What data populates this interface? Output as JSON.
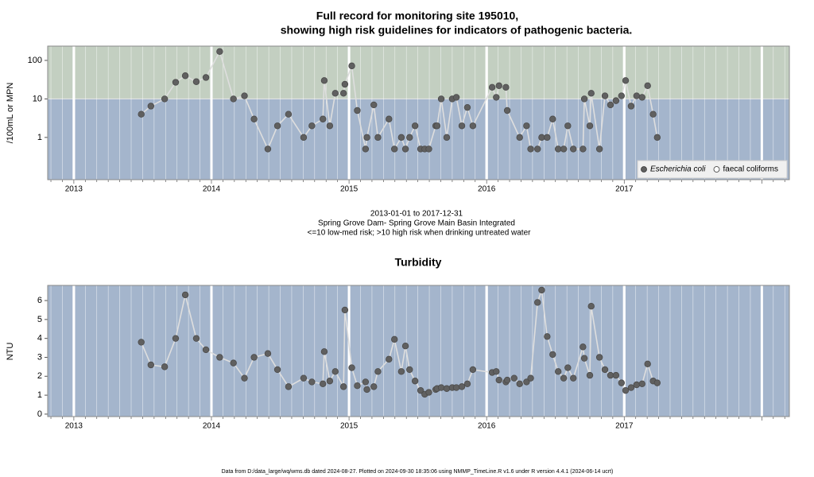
{
  "chart_data": [
    {
      "type": "line",
      "title": [
        "Full record for monitoring site 195010,",
        "showing high risk guidelines for indicators of pathogenic bacteria."
      ],
      "subtitle": [
        "2013-01-01 to 2017-12-31",
        "Spring Grove Dam- Spring Grove Main Basin Integrated",
        "<=10 low-med risk; >10 high risk when drinking untreated water"
      ],
      "y_label": "/100mL or MPN",
      "log_y": true,
      "threshold": 10,
      "band_colors": {
        "above": "#c3cfc1",
        "below": "#a4b5cc"
      },
      "xlim": [
        2012.81,
        2018.2
      ],
      "xticks": [
        2013,
        2014,
        2015,
        2016,
        2017
      ],
      "ylim": [
        0.08,
        235
      ],
      "yticks": [
        1,
        10,
        100
      ],
      "legend": "bottom right",
      "series": [
        {
          "name": "Escherichia coli",
          "color": "#606060",
          "line_color": "#dedede",
          "marker": "filled",
          "x": [
            2013.49,
            2013.56,
            2013.66,
            2013.74,
            2013.81,
            2013.89,
            2013.96,
            2014.06,
            2014.16,
            2014.24,
            2014.31,
            2014.41,
            2014.48,
            2014.56,
            2014.67,
            2014.73,
            2014.81,
            2014.82,
            2014.86,
            2014.9,
            2014.96,
            2014.97,
            2015.02,
            2015.06,
            2015.12,
            2015.13,
            2015.18,
            2015.21,
            2015.29,
            2015.33,
            2015.38,
            2015.41,
            2015.44,
            2015.48,
            2015.52,
            2015.55,
            2015.58,
            2015.63,
            2015.64,
            2015.67,
            2015.71,
            2015.75,
            2015.78,
            2015.82,
            2015.86,
            2015.9,
            2016.04,
            2016.07,
            2016.09,
            2016.14,
            2016.15,
            2016.24,
            2016.29,
            2016.32,
            2016.37,
            2016.4,
            2016.44,
            2016.48,
            2016.52,
            2016.56,
            2016.59,
            2016.63,
            2016.7,
            2016.71,
            2016.75,
            2016.76,
            2016.82,
            2016.86,
            2016.9,
            2016.94,
            2016.98,
            2017.01,
            2017.05,
            2017.09,
            2017.13,
            2017.17,
            2017.21,
            2017.24
          ],
          "values": [
            4,
            6.5,
            10,
            27,
            40,
            28,
            36,
            170,
            10,
            12,
            3,
            0.5,
            2,
            4,
            1,
            2,
            3,
            30,
            2,
            14,
            14,
            24,
            72,
            5,
            0.5,
            1,
            7,
            1,
            3,
            0.5,
            1,
            0.5,
            1,
            2,
            0.5,
            0.5,
            0.5,
            2,
            2,
            10,
            1,
            10,
            11,
            2,
            6,
            2,
            20,
            11,
            22,
            20,
            5,
            1,
            2,
            0.5,
            0.5,
            1,
            1,
            3,
            0.5,
            0.5,
            2,
            0.5,
            0.5,
            10,
            2,
            14,
            0.5,
            12,
            7,
            9,
            12,
            30,
            6.5,
            12,
            11,
            22,
            4,
            1
          ]
        },
        {
          "name": "faecal coliforms",
          "color": "#ffffff",
          "line_color": "#dedede",
          "marker": "open",
          "x": [],
          "values": []
        }
      ]
    },
    {
      "type": "line",
      "title": "Turbidity",
      "y_label": "NTU",
      "log_y": false,
      "band_colors": {
        "below": "#a4b5cc"
      },
      "xlim": [
        2012.81,
        2018.2
      ],
      "xticks": [
        2013,
        2014,
        2015,
        2016,
        2017
      ],
      "ylim": [
        -0.13,
        6.8
      ],
      "yticks": [
        0,
        1,
        2,
        3,
        4,
        5,
        6
      ],
      "series": [
        {
          "name": "Turbidity",
          "color": "#606060",
          "line_color": "#dedede",
          "marker": "filled",
          "x": [
            2013.49,
            2013.56,
            2013.66,
            2013.74,
            2013.81,
            2013.89,
            2013.96,
            2014.06,
            2014.16,
            2014.24,
            2014.31,
            2014.41,
            2014.48,
            2014.56,
            2014.67,
            2014.73,
            2014.81,
            2014.82,
            2014.86,
            2014.9,
            2014.96,
            2014.97,
            2015.02,
            2015.06,
            2015.12,
            2015.13,
            2015.18,
            2015.21,
            2015.29,
            2015.33,
            2015.38,
            2015.41,
            2015.44,
            2015.48,
            2015.52,
            2015.55,
            2015.58,
            2015.63,
            2015.64,
            2015.67,
            2015.71,
            2015.75,
            2015.78,
            2015.82,
            2015.86,
            2015.9,
            2016.04,
            2016.07,
            2016.09,
            2016.14,
            2016.15,
            2016.2,
            2016.24,
            2016.29,
            2016.32,
            2016.37,
            2016.4,
            2016.44,
            2016.48,
            2016.52,
            2016.56,
            2016.59,
            2016.63,
            2016.7,
            2016.71,
            2016.75,
            2016.76,
            2016.82,
            2016.86,
            2016.9,
            2016.94,
            2016.98,
            2017.01,
            2017.05,
            2017.09,
            2017.13,
            2017.17,
            2017.21,
            2017.24
          ],
          "values": [
            3.8,
            2.6,
            2.5,
            4.0,
            6.3,
            4.0,
            3.4,
            3.0,
            2.7,
            1.9,
            3.0,
            3.2,
            2.35,
            1.45,
            1.9,
            1.7,
            1.6,
            3.3,
            1.75,
            2.25,
            1.45,
            5.5,
            2.45,
            1.5,
            1.7,
            1.3,
            1.45,
            2.25,
            2.9,
            3.95,
            2.25,
            3.6,
            2.35,
            1.75,
            1.25,
            1.05,
            1.15,
            1.3,
            1.35,
            1.4,
            1.35,
            1.4,
            1.4,
            1.45,
            1.6,
            2.35,
            2.2,
            2.25,
            1.8,
            1.7,
            1.8,
            1.9,
            1.6,
            1.7,
            1.9,
            5.9,
            6.55,
            4.1,
            3.15,
            2.25,
            1.9,
            2.45,
            1.9,
            3.55,
            2.95,
            2.05,
            5.7,
            3.0,
            2.35,
            2.05,
            2.05,
            1.65,
            1.25,
            1.4,
            1.55,
            1.6,
            2.65,
            1.75,
            1.65
          ]
        }
      ]
    }
  ],
  "footnote": "Data from D:/data_large/wq/wms.db dated 2024-08-27. Plotted on 2024-09-30 18:35:06 using NMMP_TimeLine.R v1.6 under R version 4.4.1 (2024-06-14 ucrt)"
}
